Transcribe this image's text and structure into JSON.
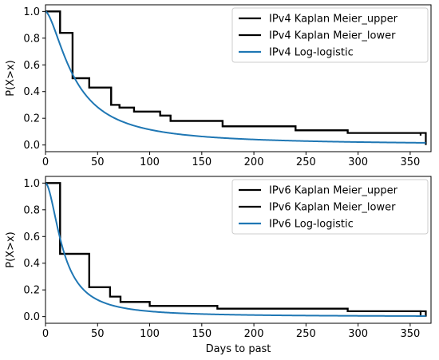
{
  "chart_data": [
    {
      "type": "line",
      "xlabel": "",
      "ylabel": "P(X>x)",
      "xlim": [
        0,
        370
      ],
      "ylim": [
        -0.05,
        1.05
      ],
      "xticks": [
        0,
        50,
        100,
        150,
        200,
        250,
        300,
        350
      ],
      "yticks": [
        0.0,
        0.2,
        0.4,
        0.6,
        0.8,
        1.0
      ],
      "xtick_labels": [
        "0",
        "50",
        "100",
        "150",
        "200",
        "250",
        "300",
        "350"
      ],
      "ytick_labels": [
        "0.0",
        "0.2",
        "0.4",
        "0.6",
        "0.8",
        "1.0"
      ],
      "grid": false,
      "legend_position": "top-right",
      "legend_entries": [
        "IPv4 Kaplan Meier_upper",
        "IPv4 Kaplan Meier_lower",
        "IPv4 Log-logistic"
      ],
      "series": [
        {
          "name": "IPv4 Kaplan Meier_upper",
          "style": "step",
          "color": "#000000",
          "x": [
            0,
            14,
            26,
            42,
            63,
            71,
            85,
            110,
            120,
            170,
            240,
            290,
            360
          ],
          "y": [
            1.0,
            0.84,
            0.5,
            0.43,
            0.3,
            0.28,
            0.25,
            0.22,
            0.18,
            0.14,
            0.11,
            0.09,
            0.07
          ]
        },
        {
          "name": "IPv4 Kaplan Meier_lower",
          "style": "step",
          "color": "#000000",
          "x": [
            0,
            14,
            26,
            42,
            63,
            71,
            85,
            110,
            120,
            170,
            240,
            290,
            365
          ],
          "y": [
            1.0,
            0.84,
            0.5,
            0.43,
            0.3,
            0.28,
            0.25,
            0.22,
            0.18,
            0.14,
            0.11,
            0.09,
            0.0
          ]
        },
        {
          "name": "IPv4 Log-logistic",
          "style": "curve",
          "color": "#1f77b4",
          "alpha": 28,
          "beta": 1.6,
          "x_range": [
            0,
            365
          ]
        }
      ]
    },
    {
      "type": "line",
      "xlabel": "Days to past",
      "ylabel": "P(X>x)",
      "xlim": [
        0,
        370
      ],
      "ylim": [
        -0.05,
        1.05
      ],
      "xticks": [
        0,
        50,
        100,
        150,
        200,
        250,
        300,
        350
      ],
      "yticks": [
        0.0,
        0.2,
        0.4,
        0.6,
        0.8,
        1.0
      ],
      "xtick_labels": [
        "0",
        "50",
        "100",
        "150",
        "200",
        "250",
        "300",
        "350"
      ],
      "ytick_labels": [
        "0.0",
        "0.2",
        "0.4",
        "0.6",
        "0.8",
        "1.0"
      ],
      "grid": false,
      "legend_position": "top-right",
      "legend_entries": [
        "IPv6 Kaplan Meier_upper",
        "IPv6 Kaplan Meier_lower",
        "IPv6 Log-logistic"
      ],
      "series": [
        {
          "name": "IPv6 Kaplan Meier_upper",
          "style": "step",
          "color": "#000000",
          "x": [
            0,
            14,
            42,
            62,
            72,
            100,
            165,
            290,
            360
          ],
          "y": [
            1.0,
            0.47,
            0.22,
            0.15,
            0.11,
            0.08,
            0.06,
            0.04,
            0.01
          ]
        },
        {
          "name": "IPv6 Kaplan Meier_lower",
          "style": "step",
          "color": "#000000",
          "x": [
            0,
            14,
            42,
            62,
            72,
            100,
            165,
            290,
            365
          ],
          "y": [
            1.0,
            0.47,
            0.22,
            0.15,
            0.11,
            0.08,
            0.06,
            0.04,
            0.0
          ]
        },
        {
          "name": "IPv6 Log-logistic",
          "style": "curve",
          "color": "#1f77b4",
          "alpha": 17,
          "beta": 1.8,
          "x_range": [
            0,
            365
          ]
        }
      ]
    }
  ]
}
